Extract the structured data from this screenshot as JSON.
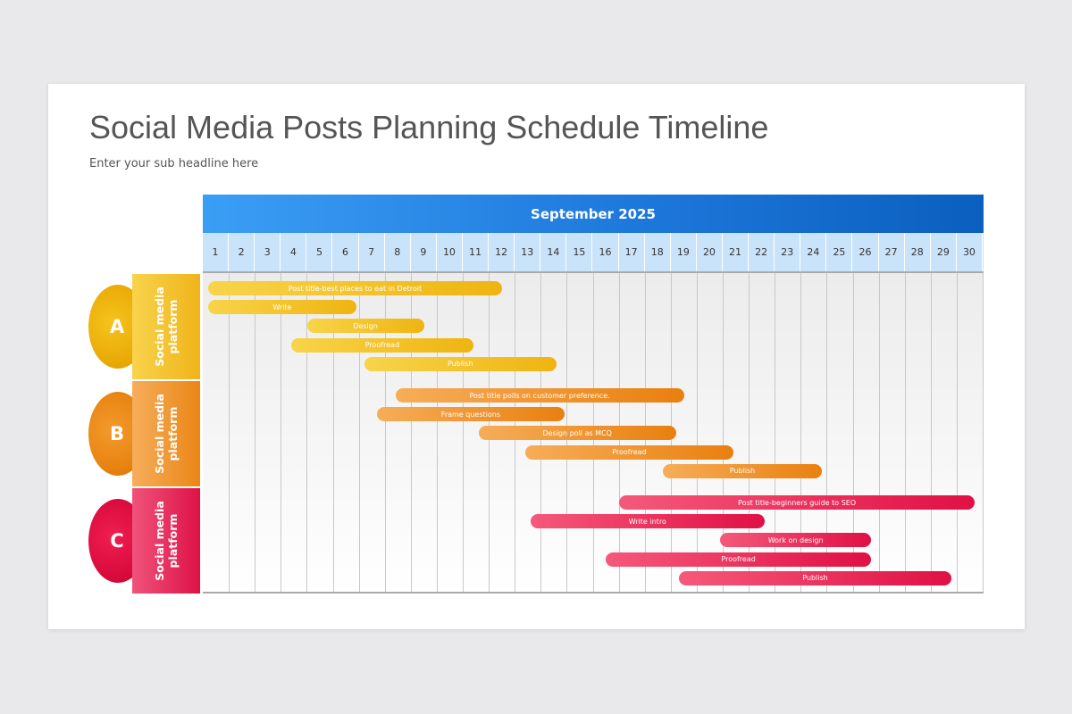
{
  "title": "Social Media Posts Planning Schedule Timeline",
  "subtitle": "Enter your sub headline here",
  "month": "September 2025",
  "days": [
    "1",
    "2",
    "3",
    "4",
    "5",
    "6",
    "7",
    "8",
    "9",
    "10",
    "11",
    "12",
    "13",
    "14",
    "15",
    "16",
    "17",
    "18",
    "19",
    "20",
    "21",
    "22",
    "23",
    "24",
    "25",
    "26",
    "27",
    "28",
    "29",
    "30"
  ],
  "colors": {
    "header": "#1e78db",
    "day_row": "#c9e3fa",
    "group_a": "#f0b41a",
    "group_b": "#ea8716",
    "group_c": "#de1247"
  },
  "groups": [
    {
      "letter": "A",
      "label": "Social media platform"
    },
    {
      "letter": "B",
      "label": "Social media platform"
    },
    {
      "letter": "C",
      "label": "Social media platform"
    }
  ],
  "chart_data": {
    "type": "gantt",
    "title": "September 2025",
    "x_range": [
      1,
      30
    ],
    "tasks": [
      {
        "group": "A",
        "label": "Post title-best places to eat in Detroit",
        "start": 1,
        "end": 12.3
      },
      {
        "group": "A",
        "label": "Write",
        "start": 1,
        "end": 6.7
      },
      {
        "group": "A",
        "label": "Design",
        "start": 4.8,
        "end": 9.3
      },
      {
        "group": "A",
        "label": "Proofread",
        "start": 4.2,
        "end": 11.2
      },
      {
        "group": "A",
        "label": "Publish",
        "start": 7,
        "end": 14.4
      },
      {
        "group": "B",
        "label": "Post title polls on customer preference.",
        "start": 8.2,
        "end": 19.3
      },
      {
        "group": "B",
        "label": "Frame questions",
        "start": 7.5,
        "end": 14.7
      },
      {
        "group": "B",
        "label": "Design poll as MCQ",
        "start": 11.4,
        "end": 19
      },
      {
        "group": "B",
        "label": "Proofread",
        "start": 13.2,
        "end": 21.2
      },
      {
        "group": "B",
        "label": "Publish",
        "start": 18.5,
        "end": 24.6
      },
      {
        "group": "C",
        "label": "Post title-beginners guide to SEO",
        "start": 16.8,
        "end": 30.5
      },
      {
        "group": "C",
        "label": "Write intro",
        "start": 13.4,
        "end": 22.4
      },
      {
        "group": "C",
        "label": "Work on design",
        "start": 20.7,
        "end": 26.5
      },
      {
        "group": "C",
        "label": "Proofread",
        "start": 16.3,
        "end": 26.5
      },
      {
        "group": "C",
        "label": "Publish",
        "start": 19.1,
        "end": 29.6
      }
    ]
  }
}
